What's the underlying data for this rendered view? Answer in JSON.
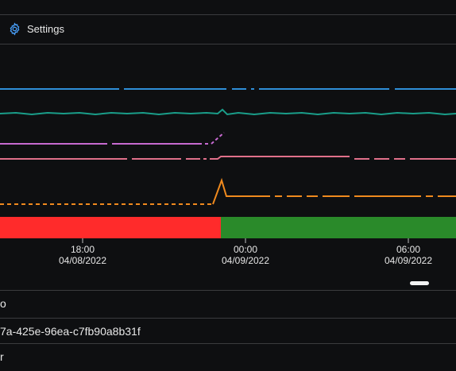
{
  "toolbar": {
    "settings_label": "Settings",
    "settings_icon": "gear-icon",
    "accent": "#4aa3ff"
  },
  "chart_data": {
    "type": "line",
    "x_ticks": [
      {
        "time": "18:00",
        "date": "04/08/2022"
      },
      {
        "time": "00:00",
        "date": "04/09/2022"
      },
      {
        "time": "06:00",
        "date": "04/09/2022"
      }
    ],
    "series": [
      {
        "color": "#2f8fd8",
        "style": "solid-gapped"
      },
      {
        "color": "#1a9e8a",
        "style": "solid-noisy"
      },
      {
        "color": "#c76ad1",
        "style": "dashed-partial"
      },
      {
        "color": "#e0708a",
        "style": "dash-dot"
      },
      {
        "color": "#f08a1e",
        "style": "dashed-step"
      }
    ],
    "state_bar": [
      {
        "state": "red",
        "color": "#ff2b2b",
        "from_fraction": 0.0,
        "to_fraction": 0.485
      },
      {
        "state": "green",
        "color": "#2a8a2a",
        "from_fraction": 0.485,
        "to_fraction": 1.0
      }
    ]
  },
  "details": {
    "row1_text": "o",
    "row2_text": "7a-425e-96ea-c7fb90a8b31f",
    "row3_text": "r​"
  }
}
